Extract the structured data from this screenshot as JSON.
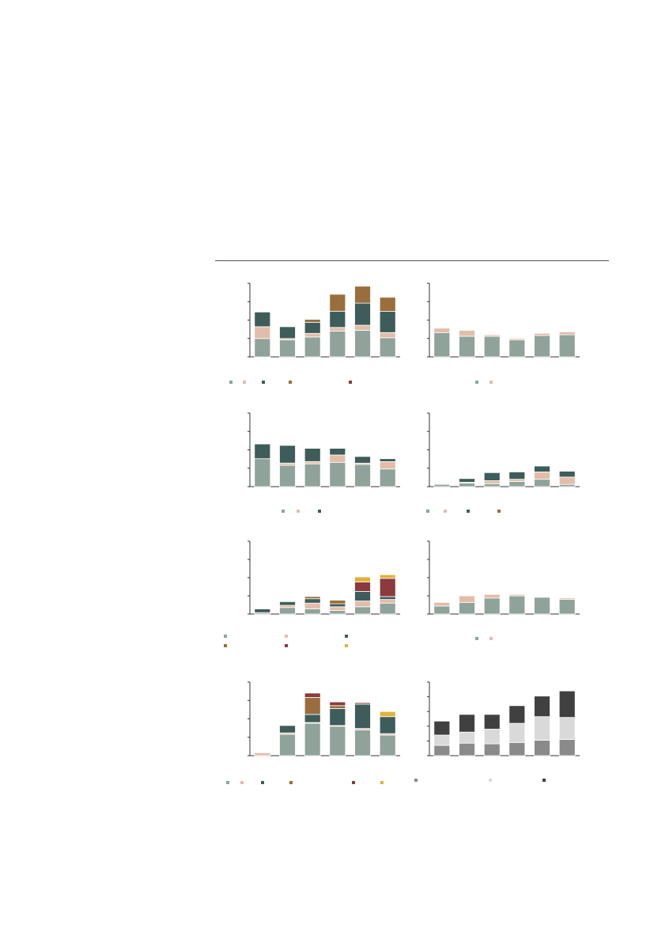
{
  "palette": {
    "A": "#8fa39a",
    "B": "#e3bda9",
    "C": "#3e5c5a",
    "D": "#9a6e3c",
    "E": "#8b3a3e",
    "F": "#e1b23c",
    "G1": "#8a8a8a",
    "G2": "#d9d9d9",
    "G3": "#404040"
  },
  "chart_data": [
    {
      "id": "c1",
      "type": "bar",
      "stacked": true,
      "ylim": [
        0,
        100
      ],
      "series": [
        {
          "color_key": "A",
          "values": [
            25,
            23,
            27,
            35,
            36,
            26
          ]
        },
        {
          "color_key": "B",
          "values": [
            16,
            2,
            5,
            5,
            7,
            7
          ]
        },
        {
          "color_key": "C",
          "values": [
            20,
            16,
            15,
            22,
            30,
            29
          ]
        },
        {
          "color_key": "D",
          "values": [
            0,
            0,
            4,
            23,
            23,
            19
          ]
        },
        {
          "color_key": "E",
          "values": [
            0,
            0,
            0,
            0,
            0,
            0
          ]
        }
      ]
    },
    {
      "id": "c2",
      "type": "bar",
      "stacked": true,
      "ylim": [
        0,
        100
      ],
      "series": [
        {
          "color_key": "A",
          "values": [
            33,
            28,
            28,
            23,
            29,
            30
          ]
        },
        {
          "color_key": "B",
          "values": [
            6,
            8,
            2,
            2,
            3,
            4
          ]
        }
      ]
    },
    {
      "id": "c3",
      "type": "bar",
      "stacked": true,
      "ylim": [
        0,
        100
      ],
      "series": [
        {
          "color_key": "A",
          "values": [
            38,
            29,
            31,
            33,
            30,
            24
          ]
        },
        {
          "color_key": "B",
          "values": [
            0,
            3,
            3,
            10,
            2,
            10
          ]
        },
        {
          "color_key": "C",
          "values": [
            20,
            24,
            18,
            9,
            9,
            4
          ]
        }
      ]
    },
    {
      "id": "c4",
      "type": "bar",
      "stacked": true,
      "ylim": [
        0,
        100
      ],
      "series": [
        {
          "color_key": "A",
          "values": [
            3,
            5,
            4,
            7,
            10,
            3
          ]
        },
        {
          "color_key": "B",
          "values": [
            0,
            1,
            4,
            3,
            10,
            10
          ]
        },
        {
          "color_key": "C",
          "values": [
            1,
            5,
            11,
            10,
            8,
            8
          ]
        },
        {
          "color_key": "D",
          "values": [
            0,
            0,
            0,
            0,
            0,
            0
          ]
        }
      ]
    },
    {
      "id": "c5",
      "type": "bar",
      "stacked": true,
      "ylim": [
        0,
        100
      ],
      "series": [
        {
          "color_key": "A",
          "values": [
            2,
            9,
            7,
            5,
            10,
            15
          ]
        },
        {
          "color_key": "B",
          "values": [
            0,
            3,
            8,
            5,
            8,
            5
          ]
        },
        {
          "color_key": "C",
          "values": [
            5,
            5,
            6,
            4,
            13,
            4
          ]
        },
        {
          "color_key": "D",
          "values": [
            0,
            0,
            3,
            5,
            0,
            0
          ]
        },
        {
          "color_key": "E",
          "values": [
            0,
            0,
            0,
            0,
            13,
            25
          ]
        },
        {
          "color_key": "F",
          "values": [
            0,
            0,
            0,
            0,
            7,
            5
          ]
        }
      ]
    },
    {
      "id": "c6",
      "type": "bar",
      "stacked": true,
      "ylim": [
        0,
        100
      ],
      "series": [
        {
          "color_key": "A",
          "values": [
            11,
            16,
            22,
            25,
            23,
            20
          ]
        },
        {
          "color_key": "B",
          "values": [
            5,
            9,
            5,
            2,
            1,
            2
          ]
        }
      ]
    },
    {
      "id": "c7",
      "type": "bar",
      "stacked": true,
      "ylim": [
        0,
        100
      ],
      "series": [
        {
          "color_key": "A",
          "values": [
            0,
            29,
            44,
            40,
            35,
            28
          ]
        },
        {
          "color_key": "B",
          "values": [
            4,
            2,
            1,
            1,
            2,
            2
          ]
        },
        {
          "color_key": "C",
          "values": [
            0,
            10,
            11,
            23,
            33,
            23
          ]
        },
        {
          "color_key": "D",
          "values": [
            0,
            0,
            23,
            4,
            0,
            0
          ]
        },
        {
          "color_key": "E",
          "values": [
            0,
            0,
            6,
            5,
            2,
            0
          ]
        },
        {
          "color_key": "F",
          "values": [
            0,
            0,
            0,
            0,
            0,
            7
          ]
        }
      ]
    },
    {
      "id": "c8",
      "type": "bar",
      "stacked": true,
      "ylim": [
        0,
        100
      ],
      "series": [
        {
          "color_key": "G1",
          "values": [
            14,
            17,
            16,
            18,
            21,
            22
          ]
        },
        {
          "color_key": "G2",
          "values": [
            14,
            15,
            20,
            26,
            32,
            30
          ]
        },
        {
          "color_key": "G3",
          "values": [
            19,
            24,
            20,
            24,
            28,
            36
          ]
        }
      ]
    }
  ]
}
